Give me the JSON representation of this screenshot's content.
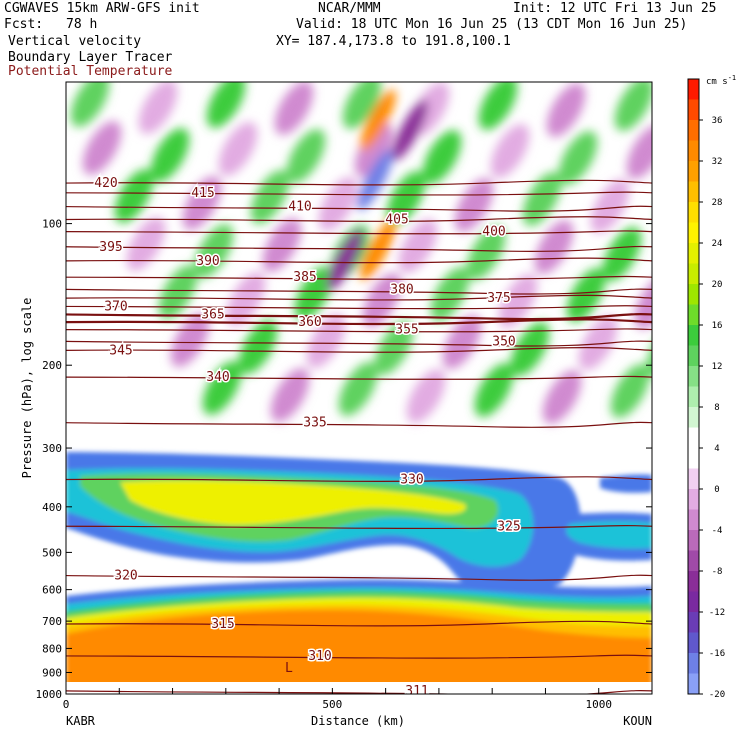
{
  "header": {
    "model": "CGWAVES 15km ARW-GFS init",
    "org": "NCAR/MMM",
    "init": "Init: 12 UTC Fri 13 Jun 25",
    "fcst_label": "Fcst:",
    "fcst_value": "78 h",
    "valid": "Valid: 18 UTC Mon 16 Jun 25 (13 CDT Mon 16 Jun 25)",
    "field1": "Vertical velocity",
    "xy": "XY= 187.4,173.8 to 191.8,100.1",
    "field2": "Boundary Layer Tracer",
    "field3": "Potential Temperature",
    "field3_color": "#8b1a1a"
  },
  "colors": {
    "theta_contour": "#7a1010",
    "background": "#ffffff"
  },
  "chart_data": {
    "type": "heatmap",
    "title": "Vertical velocity",
    "xlabel": "Distance (km)",
    "ylabel": "Pressure (hPa), log scale",
    "xlim": [
      0,
      1100
    ],
    "ylim": [
      1000,
      50
    ],
    "x_ticks": [
      "0",
      "500",
      "1000"
    ],
    "x_tick_values": [
      0,
      500,
      1000
    ],
    "y_ticks": [
      "100",
      "200",
      "300",
      "400",
      "500",
      "600",
      "700",
      "800",
      "900",
      "1000"
    ],
    "y_tick_values": [
      100,
      200,
      300,
      400,
      500,
      600,
      700,
      800,
      900,
      1000
    ],
    "endpoints": {
      "left": "KABR",
      "right": "KOUN"
    },
    "colorbar": {
      "unit": "cm s",
      "unit_exp": "-1",
      "labels": [
        "36",
        "32",
        "28",
        "24",
        "20",
        "16",
        "12",
        "8",
        "4",
        "0",
        "-4",
        "-8",
        "-12",
        "-16",
        "-20"
      ],
      "colors": [
        "#ff1a00",
        "#ff4a00",
        "#ff6e00",
        "#ff8a00",
        "#ffa000",
        "#ffbf00",
        "#ffdf00",
        "#fff200",
        "#e4f000",
        "#c8ec00",
        "#9ee600",
        "#6edc2a",
        "#3ccc3c",
        "#5ed25e",
        "#86e086",
        "#aeeeae",
        "#d2f6d2",
        "#ffffff",
        "#ffffff",
        "#f2d0f2",
        "#e2ace2",
        "#d08ad0",
        "#ba6aba",
        "#a04aa8",
        "#8a2e98",
        "#7a2aa0",
        "#6a3cb6",
        "#6058cc",
        "#6e80e6",
        "#8aa0f6"
      ]
    },
    "theta_contours": [
      {
        "label": "420",
        "p": 82
      },
      {
        "label": "415",
        "p": 86
      },
      {
        "label": "410",
        "p": 92
      },
      {
        "label": "405",
        "p": 98
      },
      {
        "label": "400",
        "p": 104
      },
      {
        "label": "395",
        "p": 112
      },
      {
        "label": "390",
        "p": 120
      },
      {
        "label": "385",
        "p": 130
      },
      {
        "label": "380",
        "p": 138
      },
      {
        "label": "375",
        "p": 144
      },
      {
        "label": "370",
        "p": 150
      },
      {
        "label": "365",
        "p": 156
      },
      {
        "label": "360",
        "p": 162
      },
      {
        "label": "355",
        "p": 168
      },
      {
        "label": "350",
        "p": 178
      },
      {
        "label": "345",
        "p": 186
      },
      {
        "label": "340",
        "p": 212
      },
      {
        "label": "335",
        "p": 265
      },
      {
        "label": "330",
        "p": 350
      },
      {
        "label": "325",
        "p": 440
      },
      {
        "label": "320",
        "p": 560
      },
      {
        "label": "315",
        "p": 710
      },
      {
        "label": "310",
        "p": 830
      },
      {
        "label": "311",
        "p": 985
      }
    ],
    "annotation": "L"
  }
}
